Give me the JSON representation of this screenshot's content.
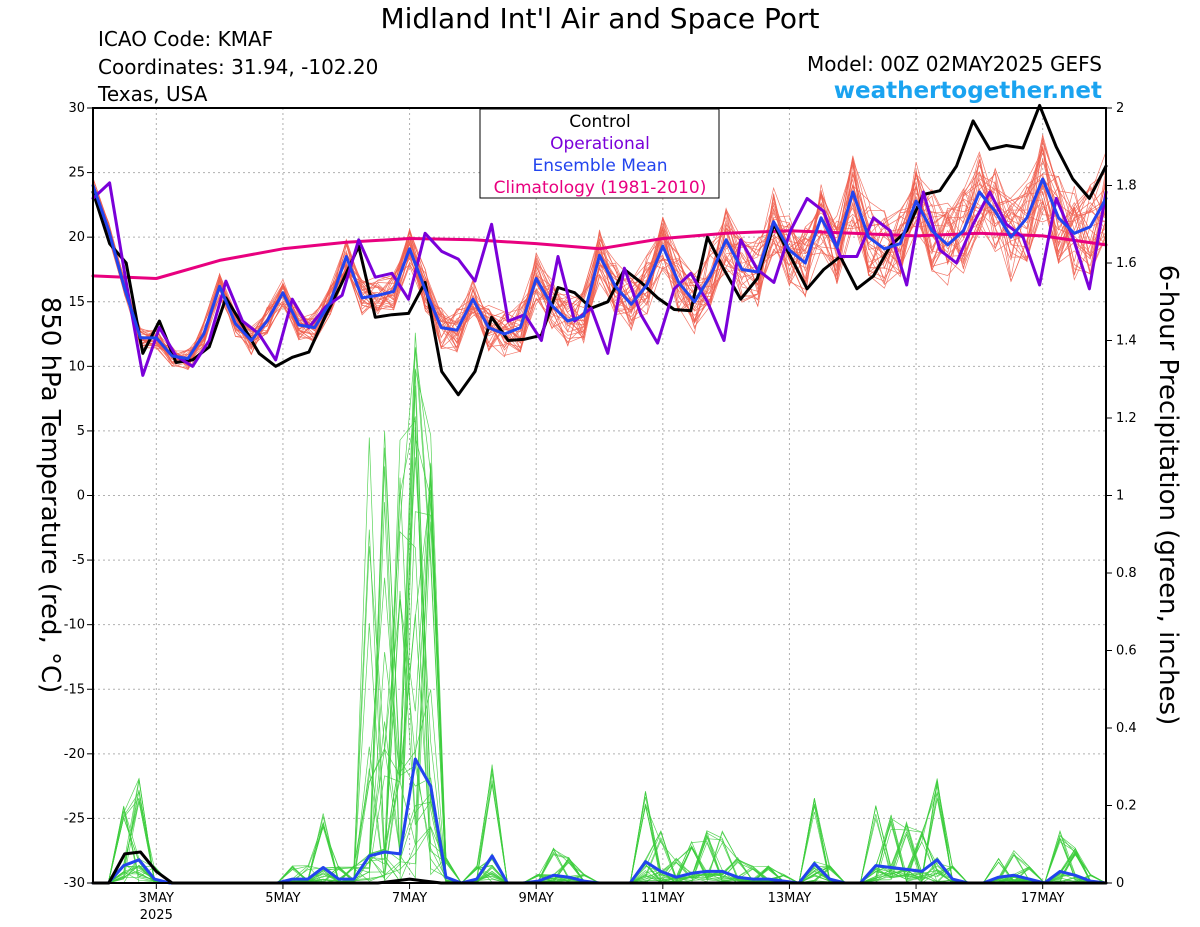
{
  "header": {
    "title": "Midland Int'l Air and Space Port",
    "icao": "ICAO Code: KMAF",
    "coords": "Coordinates: 31.94, -102.20",
    "region": "Texas, USA",
    "model": "Model: 00Z 02MAY2025 GEFS",
    "site": "weathertogether.net"
  },
  "colors": {
    "control": "#000000",
    "operational": "#7a00d9",
    "ensemble_mean": "#2244ee",
    "climatology": "#e8007f",
    "members_temp": "#f06050",
    "members_precip": "#3ccc3c"
  },
  "chart_data": {
    "type": "line",
    "ylabel": "850 hPa Temperature (red, °C)",
    "y2label": "6-hour Precipitation (green, inches)",
    "ylim": [
      -30,
      30
    ],
    "y2lim": [
      0,
      2
    ],
    "yticks": [
      "30",
      "25",
      "20",
      "15",
      "10",
      "5",
      "0",
      "-5",
      "-10",
      "-15",
      "-20",
      "-25",
      "-30"
    ],
    "y2ticks": [
      "2",
      "1.8",
      "1.6",
      "1.4",
      "1.2",
      "1",
      "0.8",
      "0.6",
      "0.4",
      "0.2",
      "0"
    ],
    "xlim_days": [
      2.0,
      18.0
    ],
    "xticks": [
      {
        "label": "3MAY",
        "sub": "2025",
        "day": 3
      },
      {
        "label": "5MAY",
        "sub": "",
        "day": 5
      },
      {
        "label": "7MAY",
        "sub": "",
        "day": 7
      },
      {
        "label": "9MAY",
        "sub": "",
        "day": 9
      },
      {
        "label": "11MAY",
        "sub": "",
        "day": 11
      },
      {
        "label": "13MAY",
        "sub": "",
        "day": 13
      },
      {
        "label": "15MAY",
        "sub": "",
        "day": 15
      },
      {
        "label": "17MAY",
        "sub": "",
        "day": 17
      }
    ],
    "grid": true,
    "legend": {
      "position": "top-center",
      "items": [
        "Control",
        "Operational",
        "Ensemble Mean",
        "Climatology (1981-2010)"
      ]
    },
    "series": [
      {
        "name": "Control",
        "axis": "temp",
        "values": [
          23.5,
          19.5,
          18.0,
          11.0,
          13.5,
          10.3,
          10.5,
          11.5,
          15.3,
          13.2,
          11.0,
          10.0,
          10.7,
          11.1,
          13.9,
          16.5,
          19.3,
          13.8,
          14.0,
          14.1,
          16.5,
          9.6,
          7.8,
          9.6,
          13.8,
          12.0,
          12.1,
          12.4,
          16.1,
          15.7,
          14.5,
          15.0,
          17.5,
          16.5,
          15.3,
          14.4,
          14.3,
          20.0,
          17.5,
          15.2,
          16.8,
          21.0,
          18.5,
          16.0,
          17.5,
          18.5,
          16.0,
          17.0,
          19.3,
          20.5,
          23.3,
          23.6,
          25.5,
          29.0,
          26.8,
          27.1,
          26.9,
          30.2,
          27.0,
          24.5,
          23.0,
          25.5
        ]
      },
      {
        "name": "Operational",
        "axis": "temp",
        "values": [
          23.0,
          24.2,
          16.5,
          9.3,
          13.0,
          10.8,
          10.0,
          12.0,
          16.6,
          13.5,
          12.5,
          10.5,
          15.2,
          13.0,
          14.6,
          15.5,
          19.8,
          16.9,
          17.2,
          15.2,
          20.3,
          18.9,
          18.3,
          16.6,
          21.0,
          13.5,
          14.0,
          12.0,
          18.5,
          13.5,
          14.5,
          11.0,
          17.6,
          14.0,
          11.8,
          16.0,
          17.2,
          15.0,
          12.0,
          19.8,
          17.5,
          16.5,
          20.5,
          23.0,
          22.0,
          18.5,
          18.5,
          21.5,
          20.5,
          16.3,
          23.5,
          19.0,
          18.0,
          21.0,
          23.5,
          21.0,
          20.0,
          16.3,
          23.0,
          20.0,
          16.0,
          23.5
        ]
      },
      {
        "name": "Ensemble Mean",
        "axis": "temp",
        "values": [
          24.0,
          20.5,
          16.0,
          12.2,
          12.2,
          10.8,
          10.6,
          12.5,
          16.2,
          13.3,
          12.0,
          13.5,
          15.7,
          13.2,
          13.0,
          15.0,
          18.5,
          15.3,
          15.5,
          15.8,
          19.1,
          15.9,
          13.0,
          12.8,
          15.2,
          13.0,
          12.5,
          13.0,
          16.8,
          14.7,
          13.5,
          13.9,
          18.6,
          16.2,
          14.8,
          16.3,
          19.3,
          16.5,
          15.0,
          17.0,
          19.8,
          17.5,
          17.3,
          21.2,
          19.0,
          18.0,
          21.5,
          19.2,
          23.5,
          20.0,
          19.1,
          19.5,
          22.8,
          20.5,
          19.4,
          20.5,
          23.5,
          22.0,
          20.0,
          21.5,
          24.5,
          21.5,
          20.3,
          20.8,
          23.0
        ]
      },
      {
        "name": "Climatology (1981-2010)",
        "axis": "temp",
        "values": [
          17.0,
          16.8,
          18.2,
          19.1,
          19.6,
          19.9,
          19.8,
          19.5,
          19.1,
          19.9,
          20.3,
          20.5,
          20.3,
          20.1,
          20.3,
          20.1,
          19.4
        ]
      },
      {
        "name": "Control",
        "axis": "precip",
        "values": [
          0,
          0,
          0.075,
          0.08,
          0.03,
          0,
          0,
          0,
          0,
          0,
          0,
          0,
          0,
          0,
          0,
          0,
          0,
          0,
          0,
          0.005,
          0.01,
          0.005,
          0,
          0,
          0,
          0,
          0,
          0,
          0,
          0,
          0,
          0,
          0,
          0,
          0,
          0,
          0,
          0,
          0,
          0,
          0,
          0,
          0,
          0,
          0,
          0,
          0,
          0,
          0,
          0,
          0,
          0,
          0,
          0,
          0,
          0,
          0,
          0,
          0,
          0,
          0,
          0,
          0,
          0,
          0
        ]
      },
      {
        "name": "Ensemble Mean",
        "axis": "precip",
        "values": [
          0,
          0,
          0.045,
          0.06,
          0.01,
          0,
          0,
          0,
          0,
          0,
          0,
          0,
          0,
          0.01,
          0.01,
          0.04,
          0.01,
          0.01,
          0.07,
          0.08,
          0.075,
          0.32,
          0.25,
          0.015,
          0,
          0.01,
          0.07,
          0,
          0,
          0.005,
          0.02,
          0.015,
          0.005,
          0,
          0,
          0,
          0.055,
          0.03,
          0.015,
          0.025,
          0.03,
          0.03,
          0.015,
          0.01,
          0.01,
          0.005,
          0,
          0.05,
          0.01,
          0,
          0,
          0.045,
          0.04,
          0.035,
          0.03,
          0.06,
          0.01,
          0,
          0,
          0.015,
          0.02,
          0.01,
          0,
          0.03,
          0.02,
          0.005,
          0
        ]
      }
    ]
  }
}
